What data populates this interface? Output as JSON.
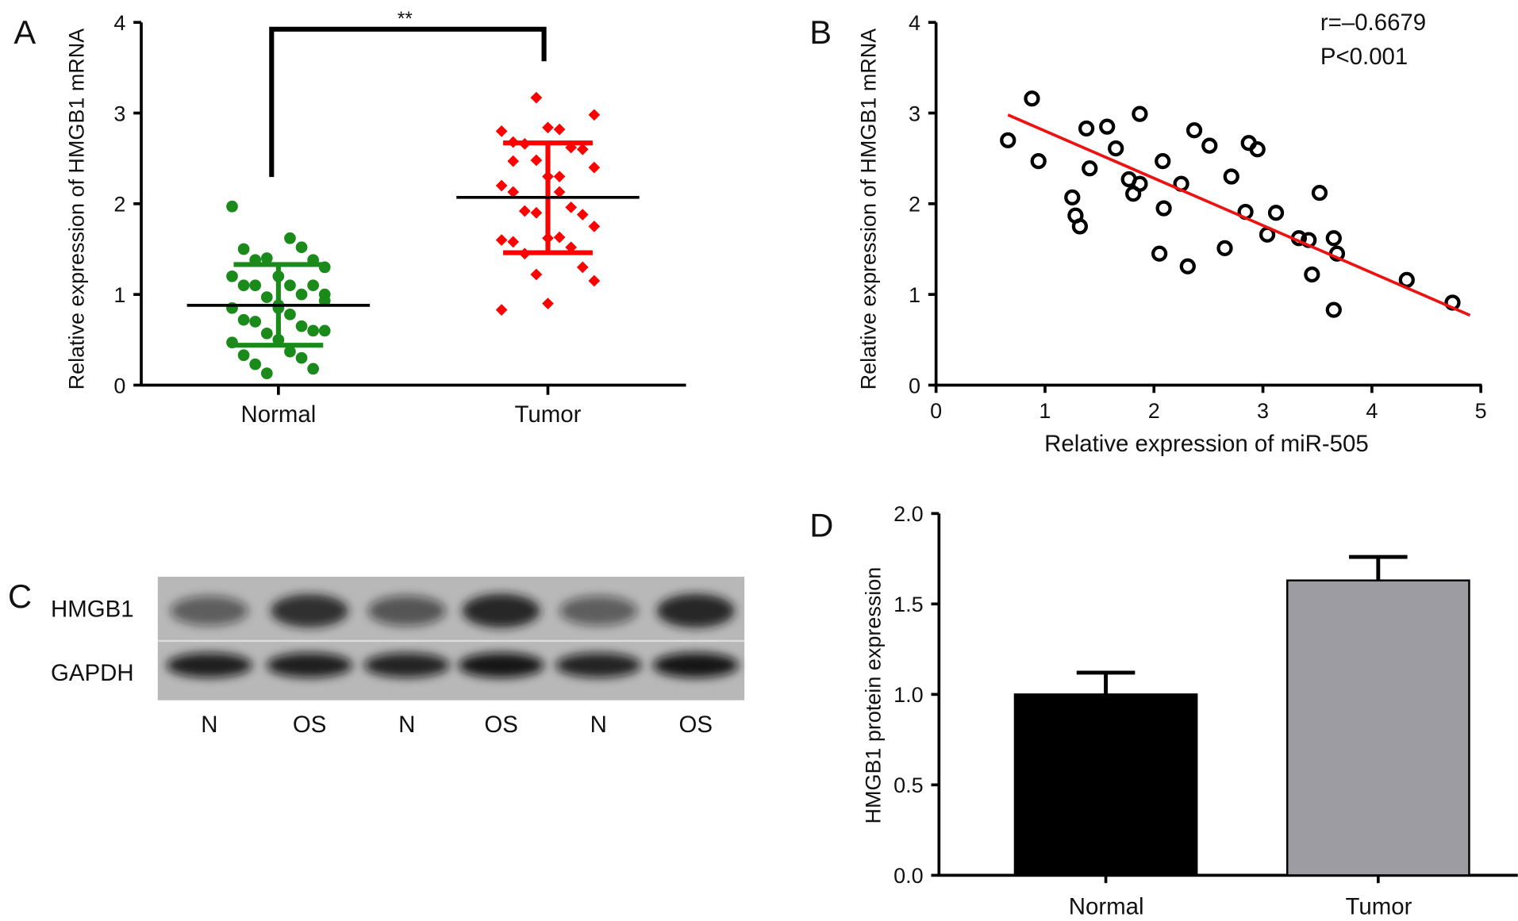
{
  "panels": {
    "a": "A",
    "b": "B",
    "c": "C",
    "d": "D"
  },
  "chart_data": [
    {
      "panel": "A",
      "type": "scatter",
      "ylabel": "Relative expression of HMGB1  mRNA",
      "ylim": [
        0,
        4
      ],
      "yticks": [
        "0",
        "1",
        "2",
        "3",
        "4"
      ],
      "categories": [
        "Normal",
        "Tumor"
      ],
      "significance": "**",
      "series": [
        {
          "name": "Normal",
          "color": "#1a8a1a",
          "marker": "circle",
          "mean": 0.88,
          "sd_low": 0.44,
          "sd_high": 1.33,
          "values": [
            1.97,
            1.62,
            1.5,
            1.52,
            1.38,
            1.38,
            1.4,
            1.3,
            1.2,
            1.2,
            1.1,
            1.1,
            1.0,
            1.1,
            1.1,
            0.97,
            0.93,
            0.85,
            0.85,
            0.78,
            0.72,
            0.65,
            0.7,
            0.6,
            0.57,
            0.6,
            0.5,
            0.47,
            0.37,
            0.33,
            0.3,
            0.23,
            0.18,
            0.13,
            1.0,
            0.88
          ]
        },
        {
          "name": "Tumor",
          "color": "#ff0000",
          "marker": "diamond",
          "mean": 2.07,
          "sd_low": 1.46,
          "sd_high": 2.67,
          "values": [
            3.17,
            2.98,
            2.84,
            2.8,
            2.82,
            2.68,
            2.62,
            2.66,
            2.6,
            2.48,
            2.4,
            2.3,
            2.2,
            2.13,
            2.13,
            1.96,
            1.92,
            1.88,
            1.9,
            1.75,
            1.62,
            1.6,
            1.63,
            1.58,
            1.52,
            1.45,
            1.3,
            1.22,
            1.15,
            0.9,
            0.83,
            2.3,
            2.47
          ]
        }
      ]
    },
    {
      "panel": "B",
      "type": "scatter",
      "xlabel": "Relative expression of miR-505",
      "ylabel": "Relative expression of HMGB1  mRNA",
      "xlim": [
        0,
        5
      ],
      "ylim": [
        0,
        4
      ],
      "xticks": [
        "0",
        "1",
        "2",
        "3",
        "4",
        "5"
      ],
      "yticks": [
        "0",
        "1",
        "2",
        "3",
        "4"
      ],
      "annotation_r": "r=–0.6679",
      "annotation_p": "P<0.001",
      "fit_line": {
        "x": [
          0.66,
          4.9
        ],
        "y": [
          2.98,
          0.77
        ],
        "color": "#ee1111"
      },
      "points": [
        [
          0.66,
          2.7
        ],
        [
          0.88,
          3.16
        ],
        [
          0.94,
          2.47
        ],
        [
          1.25,
          2.07
        ],
        [
          1.28,
          1.87
        ],
        [
          1.32,
          1.75
        ],
        [
          1.38,
          2.83
        ],
        [
          1.41,
          2.39
        ],
        [
          1.57,
          2.85
        ],
        [
          1.65,
          2.61
        ],
        [
          1.77,
          2.27
        ],
        [
          1.81,
          2.11
        ],
        [
          1.87,
          2.22
        ],
        [
          1.87,
          2.99
        ],
        [
          2.08,
          2.47
        ],
        [
          2.09,
          1.95
        ],
        [
          2.05,
          1.45
        ],
        [
          2.25,
          2.22
        ],
        [
          2.31,
          1.31
        ],
        [
          2.37,
          2.81
        ],
        [
          2.51,
          2.64
        ],
        [
          2.65,
          1.51
        ],
        [
          2.71,
          2.3
        ],
        [
          2.84,
          1.91
        ],
        [
          2.87,
          2.67
        ],
        [
          2.95,
          2.6
        ],
        [
          3.04,
          1.66
        ],
        [
          3.12,
          1.9
        ],
        [
          3.33,
          1.62
        ],
        [
          3.42,
          1.6
        ],
        [
          3.45,
          1.22
        ],
        [
          3.52,
          2.12
        ],
        [
          3.65,
          1.62
        ],
        [
          3.68,
          1.45
        ],
        [
          3.65,
          0.83
        ],
        [
          4.32,
          1.16
        ],
        [
          4.74,
          0.91
        ]
      ]
    },
    {
      "panel": "D",
      "type": "bar",
      "ylabel": "HMGB1 protein expression",
      "ylim": [
        0,
        2.0
      ],
      "yticks": [
        "0.0",
        "0.5",
        "1.0",
        "1.5",
        "2.0"
      ],
      "categories": [
        "Normal",
        "Tumor"
      ],
      "values": [
        1.0,
        1.63
      ],
      "errors": [
        0.12,
        0.13
      ],
      "colors": [
        "#000000",
        "#9c9ca2"
      ]
    }
  ],
  "blot": {
    "rows": [
      "HMGB1",
      "GAPDH"
    ],
    "lanes": [
      "N",
      "OS",
      "N",
      "OS",
      "N",
      "OS"
    ],
    "hmgb1_intensity": [
      0.55,
      0.85,
      0.6,
      0.9,
      0.55,
      0.9
    ],
    "gapdh_intensity": [
      0.9,
      0.9,
      0.88,
      0.95,
      0.88,
      0.95
    ]
  }
}
